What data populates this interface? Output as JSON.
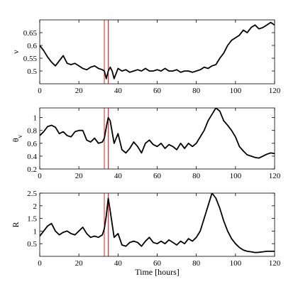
{
  "chart_data": [
    {
      "type": "line",
      "ylabel": "ν",
      "xlabel": "",
      "xlim": [
        0,
        120
      ],
      "ylim": [
        0.45,
        0.7
      ],
      "xticks": [
        0,
        20,
        40,
        60,
        80,
        100,
        120
      ],
      "yticks": [
        0.5,
        0.55,
        0.6,
        0.65
      ],
      "ytick_labels": [
        "0.5",
        "0.55",
        "0.6",
        "0.65"
      ],
      "vlines": [
        33,
        35
      ],
      "series": [
        {
          "x": [
            0,
            2,
            4,
            6,
            8,
            10,
            12,
            14,
            16,
            18,
            20,
            22,
            24,
            26,
            28,
            30,
            32,
            33,
            34,
            35,
            36,
            37,
            38,
            40,
            42,
            44,
            46,
            48,
            50,
            52,
            54,
            56,
            58,
            60,
            62,
            64,
            66,
            68,
            70,
            72,
            74,
            76,
            78,
            80,
            82,
            84,
            86,
            88,
            90,
            92,
            94,
            96,
            98,
            100,
            102,
            104,
            106,
            108,
            110,
            112,
            114,
            116,
            118,
            120
          ],
          "y": [
            0.6,
            0.58,
            0.555,
            0.535,
            0.52,
            0.54,
            0.56,
            0.53,
            0.525,
            0.53,
            0.52,
            0.51,
            0.505,
            0.515,
            0.52,
            0.51,
            0.505,
            0.5,
            0.47,
            0.5,
            0.515,
            0.5,
            0.47,
            0.51,
            0.5,
            0.505,
            0.495,
            0.5,
            0.505,
            0.5,
            0.51,
            0.5,
            0.5,
            0.505,
            0.5,
            0.51,
            0.5,
            0.5,
            0.505,
            0.495,
            0.5,
            0.5,
            0.495,
            0.5,
            0.505,
            0.515,
            0.51,
            0.52,
            0.525,
            0.55,
            0.57,
            0.6,
            0.62,
            0.63,
            0.64,
            0.66,
            0.65,
            0.67,
            0.68,
            0.665,
            0.67,
            0.68,
            0.69,
            0.68
          ]
        }
      ]
    },
    {
      "type": "line",
      "ylabel": "θv",
      "xlabel": "",
      "xlim": [
        0,
        120
      ],
      "ylim": [
        0.2,
        1.15
      ],
      "xticks": [
        0,
        20,
        40,
        60,
        80,
        100,
        120
      ],
      "yticks": [
        0.2,
        0.4,
        0.6,
        0.8,
        1.0
      ],
      "ytick_labels": [
        "0.2",
        "0.4",
        "0.6",
        "0.8",
        "1"
      ],
      "vlines": [
        33,
        35
      ],
      "series": [
        {
          "x": [
            0,
            2,
            4,
            6,
            8,
            10,
            12,
            14,
            16,
            18,
            20,
            22,
            24,
            26,
            28,
            30,
            32,
            33,
            34,
            35,
            36,
            38,
            40,
            42,
            44,
            46,
            48,
            50,
            52,
            54,
            56,
            58,
            60,
            62,
            64,
            66,
            68,
            70,
            72,
            74,
            76,
            78,
            80,
            82,
            84,
            86,
            88,
            90,
            92,
            94,
            96,
            98,
            100,
            102,
            104,
            106,
            108,
            110,
            112,
            114,
            116,
            118,
            120
          ],
          "y": [
            0.72,
            0.78,
            0.86,
            0.88,
            0.85,
            0.75,
            0.78,
            0.72,
            0.7,
            0.78,
            0.8,
            0.8,
            0.65,
            0.62,
            0.68,
            0.6,
            0.62,
            0.68,
            0.85,
            1.0,
            0.95,
            0.6,
            0.75,
            0.5,
            0.45,
            0.52,
            0.62,
            0.55,
            0.45,
            0.6,
            0.65,
            0.58,
            0.55,
            0.6,
            0.52,
            0.58,
            0.55,
            0.5,
            0.6,
            0.52,
            0.6,
            0.55,
            0.6,
            0.7,
            0.8,
            0.95,
            1.05,
            1.15,
            1.1,
            0.95,
            0.88,
            0.8,
            0.7,
            0.55,
            0.48,
            0.42,
            0.4,
            0.38,
            0.37,
            0.4,
            0.43,
            0.45,
            0.44
          ]
        }
      ]
    },
    {
      "type": "line",
      "ylabel": "R",
      "xlabel": "Time [hours]",
      "xlim": [
        0,
        120
      ],
      "ylim": [
        0,
        2.5
      ],
      "xticks": [
        0,
        20,
        40,
        60,
        80,
        100,
        120
      ],
      "yticks": [
        0.5,
        1.0,
        1.5,
        2.0,
        2.5
      ],
      "ytick_labels": [
        "0.5",
        "1",
        "1.5",
        "2",
        "2.5"
      ],
      "vlines": [
        33,
        35
      ],
      "series": [
        {
          "x": [
            0,
            2,
            4,
            6,
            8,
            10,
            12,
            14,
            16,
            18,
            20,
            22,
            24,
            26,
            28,
            30,
            32,
            33,
            34,
            35,
            36,
            38,
            40,
            42,
            44,
            46,
            48,
            50,
            52,
            54,
            56,
            58,
            60,
            62,
            64,
            66,
            68,
            70,
            72,
            74,
            76,
            78,
            80,
            82,
            84,
            86,
            88,
            90,
            92,
            94,
            96,
            98,
            100,
            102,
            104,
            106,
            108,
            110,
            112,
            114,
            116,
            118,
            120
          ],
          "y": [
            0.8,
            1.0,
            1.2,
            1.3,
            1.0,
            0.85,
            0.95,
            1.0,
            0.9,
            0.85,
            1.0,
            1.15,
            0.9,
            0.75,
            0.8,
            0.75,
            0.85,
            1.1,
            1.6,
            2.3,
            1.8,
            0.75,
            0.9,
            0.45,
            0.4,
            0.55,
            0.6,
            0.55,
            0.4,
            0.6,
            0.75,
            0.55,
            0.5,
            0.6,
            0.5,
            0.65,
            0.55,
            0.45,
            0.6,
            0.5,
            0.7,
            0.6,
            0.75,
            1.0,
            1.5,
            2.0,
            2.5,
            2.3,
            1.9,
            1.4,
            1.0,
            0.7,
            0.5,
            0.35,
            0.25,
            0.2,
            0.18,
            0.15,
            0.16,
            0.18,
            0.2,
            0.2,
            0.2
          ]
        }
      ]
    }
  ]
}
